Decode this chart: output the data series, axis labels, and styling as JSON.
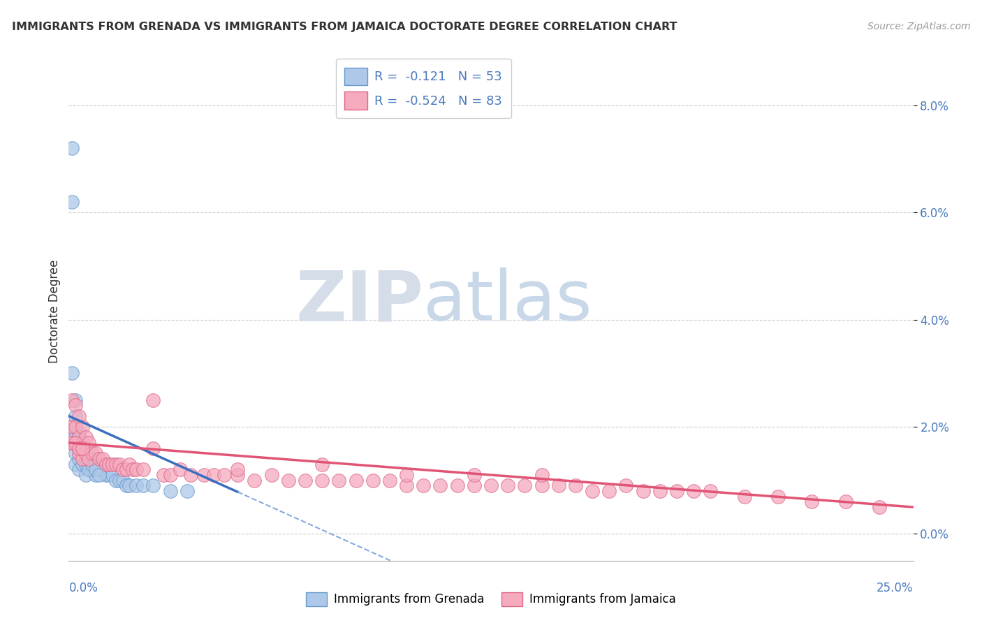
{
  "title": "IMMIGRANTS FROM GRENADA VS IMMIGRANTS FROM JAMAICA DOCTORATE DEGREE CORRELATION CHART",
  "source": "Source: ZipAtlas.com",
  "ylabel": "Doctorate Degree",
  "ytick_vals": [
    0.0,
    0.02,
    0.04,
    0.06,
    0.08
  ],
  "ytick_labels": [
    "0.0%",
    "2.0%",
    "4.0%",
    "6.0%",
    "8.0%"
  ],
  "xlim": [
    0.0,
    0.25
  ],
  "ylim": [
    -0.005,
    0.088
  ],
  "legend_r_grenada": "-0.121",
  "legend_n_grenada": "53",
  "legend_r_jamaica": "-0.524",
  "legend_n_jamaica": "83",
  "color_grenada": "#adc8e8",
  "color_jamaica": "#f5aabe",
  "edge_color_grenada": "#6699cc",
  "edge_color_jamaica": "#dd6688",
  "line_color_grenada": "#3a6fc0",
  "line_color_jamaica": "#e05575",
  "line_color_grenada_dash": "#88aadd",
  "watermark_zip": "ZIP",
  "watermark_atlas": "atlas",
  "grenada_x": [
    0.001,
    0.001,
    0.001,
    0.001,
    0.002,
    0.002,
    0.002,
    0.002,
    0.002,
    0.003,
    0.003,
    0.003,
    0.003,
    0.004,
    0.004,
    0.004,
    0.005,
    0.005,
    0.005,
    0.006,
    0.006,
    0.007,
    0.007,
    0.008,
    0.008,
    0.009,
    0.01,
    0.011,
    0.012,
    0.013,
    0.014,
    0.015,
    0.016,
    0.017,
    0.018,
    0.02,
    0.022,
    0.025,
    0.03,
    0.035,
    0.001,
    0.001,
    0.002,
    0.002,
    0.003,
    0.003,
    0.004,
    0.005,
    0.006,
    0.006,
    0.007,
    0.008,
    0.009
  ],
  "grenada_y": [
    0.072,
    0.062,
    0.03,
    0.02,
    0.025,
    0.02,
    0.017,
    0.015,
    0.013,
    0.018,
    0.016,
    0.014,
    0.012,
    0.017,
    0.015,
    0.013,
    0.015,
    0.013,
    0.011,
    0.015,
    0.013,
    0.014,
    0.012,
    0.013,
    0.011,
    0.012,
    0.012,
    0.011,
    0.011,
    0.011,
    0.01,
    0.01,
    0.01,
    0.009,
    0.009,
    0.009,
    0.009,
    0.009,
    0.008,
    0.008,
    0.019,
    0.017,
    0.022,
    0.019,
    0.019,
    0.017,
    0.017,
    0.014,
    0.014,
    0.012,
    0.013,
    0.012,
    0.011
  ],
  "jamaica_x": [
    0.001,
    0.001,
    0.001,
    0.002,
    0.002,
    0.002,
    0.003,
    0.003,
    0.003,
    0.004,
    0.004,
    0.004,
    0.005,
    0.005,
    0.006,
    0.006,
    0.007,
    0.008,
    0.009,
    0.01,
    0.011,
    0.012,
    0.013,
    0.014,
    0.015,
    0.016,
    0.017,
    0.018,
    0.019,
    0.02,
    0.022,
    0.025,
    0.028,
    0.03,
    0.033,
    0.036,
    0.04,
    0.043,
    0.046,
    0.05,
    0.055,
    0.06,
    0.065,
    0.07,
    0.075,
    0.08,
    0.085,
    0.09,
    0.095,
    0.1,
    0.105,
    0.11,
    0.115,
    0.12,
    0.125,
    0.13,
    0.135,
    0.14,
    0.145,
    0.15,
    0.155,
    0.16,
    0.165,
    0.17,
    0.175,
    0.18,
    0.185,
    0.19,
    0.2,
    0.21,
    0.22,
    0.23,
    0.24,
    0.001,
    0.002,
    0.003,
    0.004,
    0.025,
    0.05,
    0.075,
    0.1,
    0.12,
    0.14
  ],
  "jamaica_y": [
    0.025,
    0.02,
    0.017,
    0.024,
    0.02,
    0.017,
    0.022,
    0.018,
    0.015,
    0.02,
    0.017,
    0.014,
    0.018,
    0.015,
    0.017,
    0.014,
    0.015,
    0.015,
    0.014,
    0.014,
    0.013,
    0.013,
    0.013,
    0.013,
    0.013,
    0.012,
    0.012,
    0.013,
    0.012,
    0.012,
    0.012,
    0.025,
    0.011,
    0.011,
    0.012,
    0.011,
    0.011,
    0.011,
    0.011,
    0.011,
    0.01,
    0.011,
    0.01,
    0.01,
    0.01,
    0.01,
    0.01,
    0.01,
    0.01,
    0.009,
    0.009,
    0.009,
    0.009,
    0.009,
    0.009,
    0.009,
    0.009,
    0.009,
    0.009,
    0.009,
    0.008,
    0.008,
    0.009,
    0.008,
    0.008,
    0.008,
    0.008,
    0.008,
    0.007,
    0.007,
    0.006,
    0.006,
    0.005,
    0.017,
    0.017,
    0.016,
    0.016,
    0.016,
    0.012,
    0.013,
    0.011,
    0.011,
    0.011
  ]
}
